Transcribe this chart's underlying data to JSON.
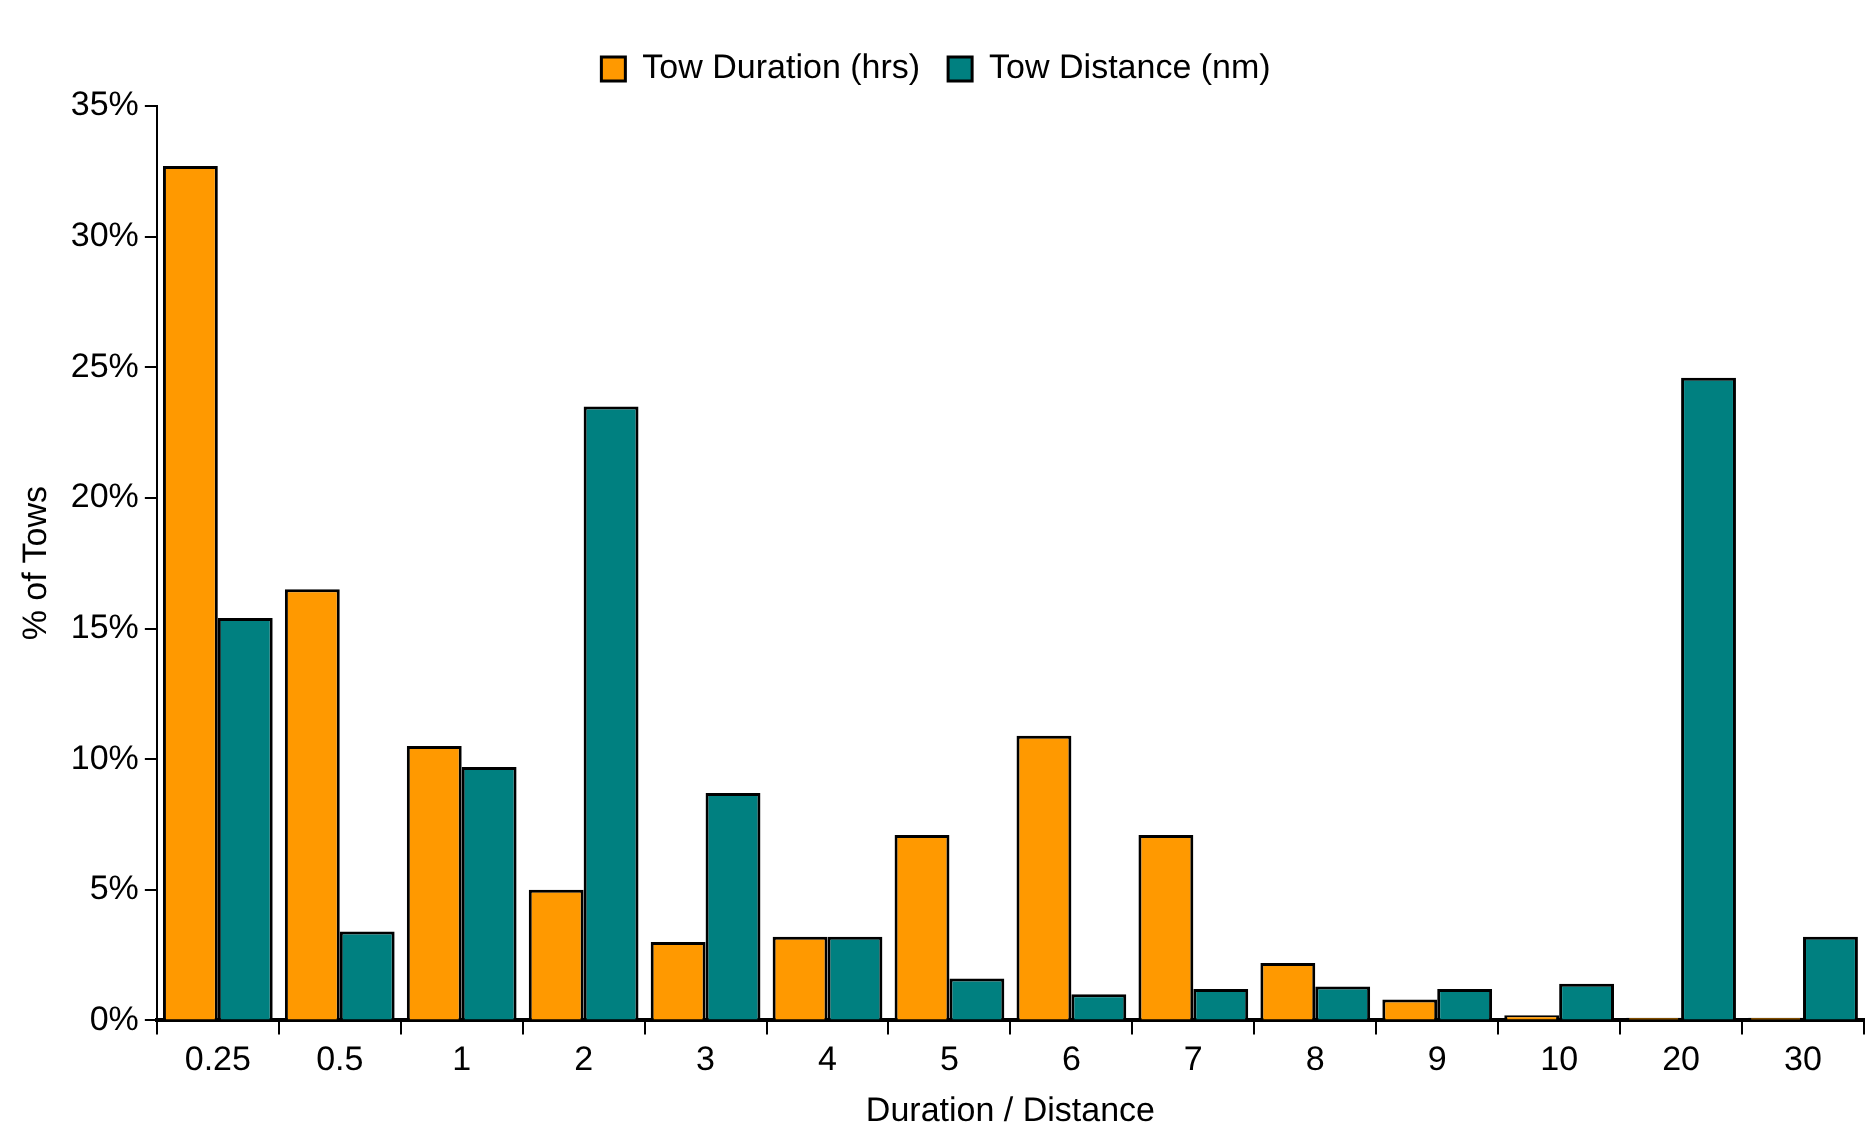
{
  "chart_data": {
    "type": "bar",
    "xlabel": "Duration / Distance",
    "ylabel": "% of Tows",
    "categories": [
      "0.25",
      "0.5",
      "1",
      "2",
      "3",
      "4",
      "5",
      "6",
      "7",
      "8",
      "9",
      "10",
      "20",
      "30"
    ],
    "series": [
      {
        "name": "Tow Duration (hrs)",
        "color": "#ff9900",
        "values": [
          32.7,
          16.5,
          10.5,
          5.0,
          3.0,
          3.2,
          7.1,
          10.9,
          7.1,
          2.2,
          0.8,
          0.2,
          0.1,
          0.1
        ]
      },
      {
        "name": "Tow Distance (nm)",
        "color": "#008080",
        "values": [
          15.4,
          3.4,
          9.7,
          23.5,
          8.7,
          3.2,
          1.6,
          1.0,
          1.2,
          1.3,
          1.2,
          1.4,
          24.6,
          3.2
        ]
      }
    ],
    "ylim": [
      0,
      35
    ],
    "yticks": [
      {
        "value": 0,
        "label": "0%"
      },
      {
        "value": 5,
        "label": "5%"
      },
      {
        "value": 10,
        "label": "10%"
      },
      {
        "value": 15,
        "label": "15%"
      },
      {
        "value": 20,
        "label": "20%"
      },
      {
        "value": 25,
        "label": "25%"
      },
      {
        "value": 30,
        "label": "30%"
      },
      {
        "value": 35,
        "label": "35%"
      }
    ],
    "grid": false,
    "legend": "top"
  }
}
